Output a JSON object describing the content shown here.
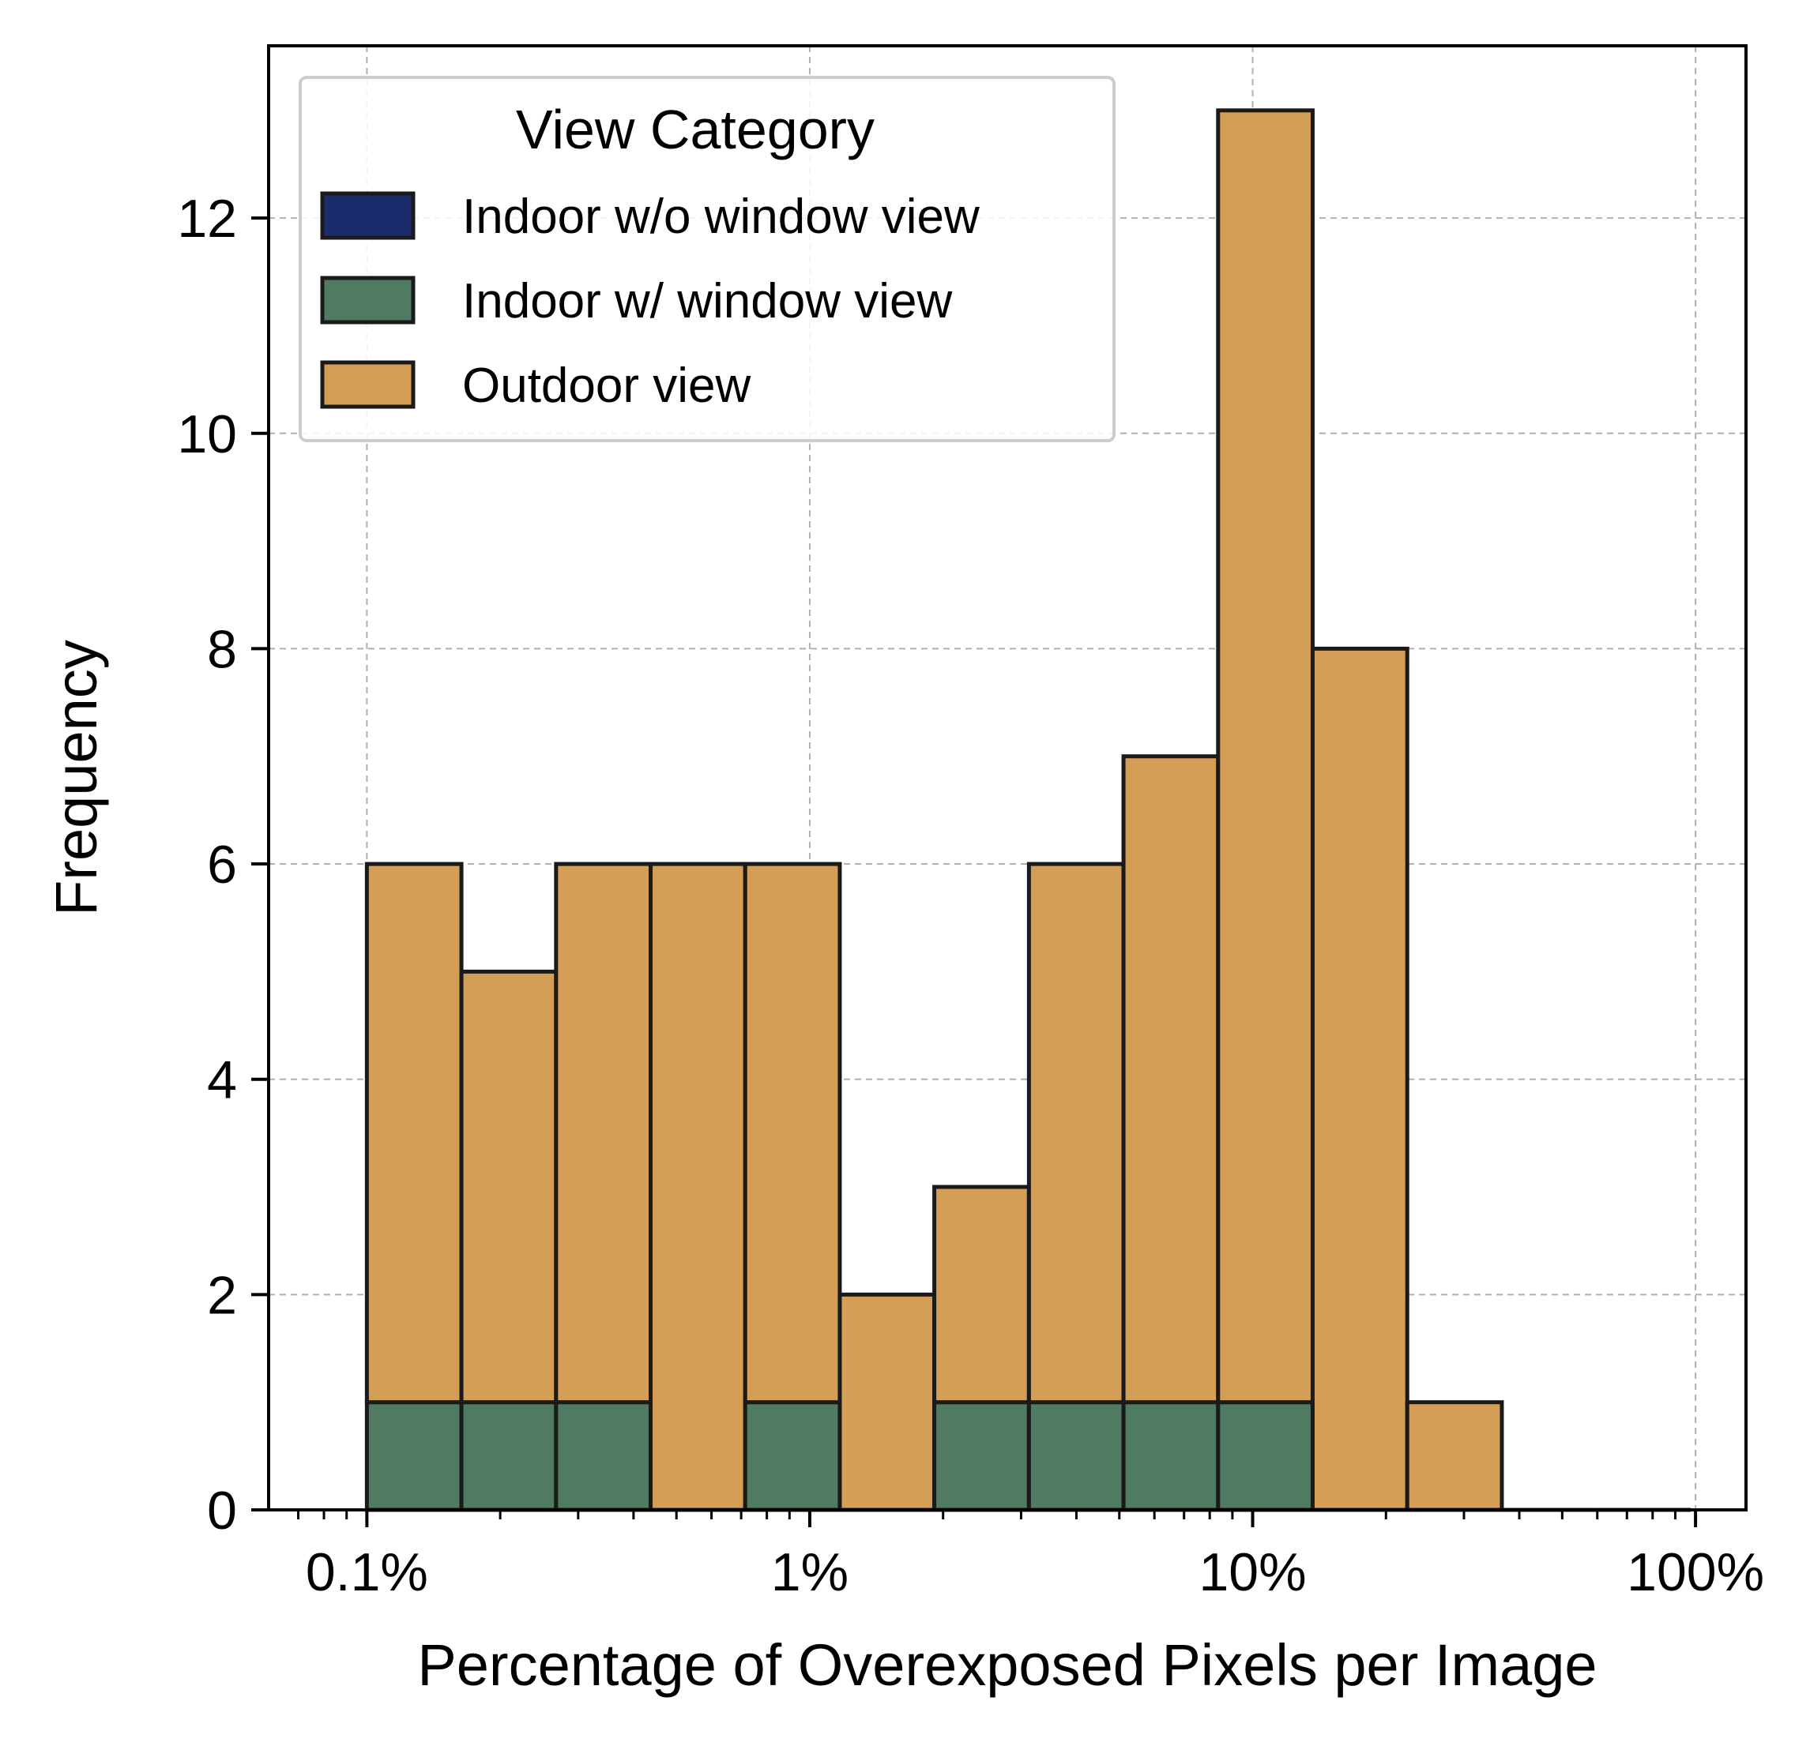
{
  "chart_data": {
    "type": "bar",
    "subtype": "stacked-histogram",
    "title": "",
    "xlabel": "Percentage of Overexposed Pixels per Image",
    "ylabel": "Frequency",
    "x_scale": "log",
    "xlim": [
      0.06,
      130
    ],
    "ylim": [
      0,
      13.6
    ],
    "x_ticks": [
      {
        "value": 0.1,
        "label": "0.1%"
      },
      {
        "value": 1,
        "label": "1%"
      },
      {
        "value": 10,
        "label": "10%"
      },
      {
        "value": 100,
        "label": "100%"
      }
    ],
    "y_ticks": [
      {
        "value": 0,
        "label": "0"
      },
      {
        "value": 2,
        "label": "2"
      },
      {
        "value": 4,
        "label": "4"
      },
      {
        "value": 6,
        "label": "6"
      },
      {
        "value": 8,
        "label": "8"
      },
      {
        "value": 10,
        "label": "10"
      },
      {
        "value": 12,
        "label": "12"
      }
    ],
    "grid": true,
    "legend": {
      "title": "View Category",
      "placement": "upper-left"
    },
    "bin_edges": [
      0.1,
      0.1635,
      0.2674,
      0.4372,
      0.7149,
      1.169,
      1.911,
      3.125,
      5.11,
      8.356,
      13.66,
      22.34,
      36.53,
      59.73,
      97.66
    ],
    "series": [
      {
        "name": "Indoor w/o window view",
        "color": "#1a2c6b",
        "values": [
          0,
          0,
          0,
          0,
          0,
          0,
          0,
          0,
          0,
          0,
          0,
          0,
          0,
          0
        ]
      },
      {
        "name": "Indoor w/ window view",
        "color": "#4f7b63",
        "values": [
          1,
          1,
          1,
          0,
          1,
          0,
          1,
          1,
          1,
          1,
          0,
          0,
          0,
          0
        ]
      },
      {
        "name": "Outdoor view",
        "color": "#d59e57",
        "values": [
          5,
          4,
          5,
          6,
          5,
          2,
          2,
          5,
          6,
          12,
          8,
          1,
          0,
          0
        ]
      }
    ]
  }
}
